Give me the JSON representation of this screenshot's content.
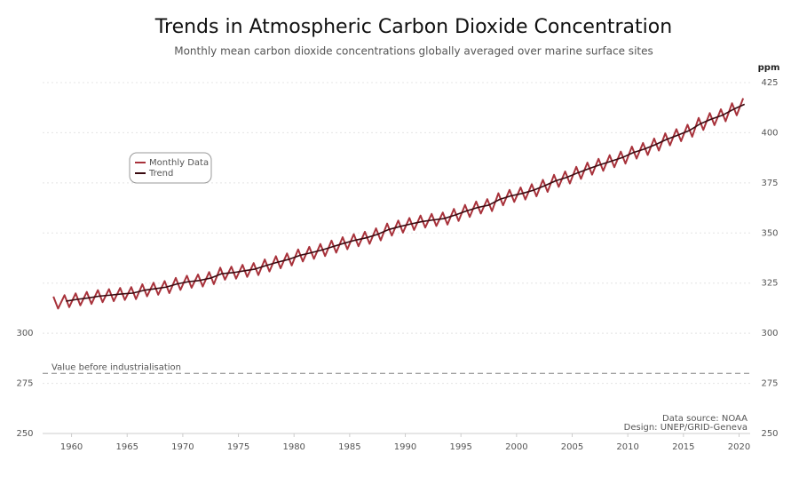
{
  "chart_data": {
    "type": "line",
    "title": "Trends in Atmospheric Carbon Dioxide Concentration",
    "subtitle": "Monthly mean carbon dioxide concentrations globally averaged over marine surface sites",
    "y2_label": "ppm",
    "xlim": [
      1957.4,
      2021
    ],
    "xticks": [
      1960,
      1965,
      1970,
      1975,
      1980,
      1985,
      1990,
      1995,
      2000,
      2005,
      2010,
      2015,
      2020
    ],
    "ylim": [
      250,
      425
    ],
    "yticks": [
      250,
      275,
      300
    ],
    "y2lim": [
      250,
      425
    ],
    "y2ticks": [
      250,
      275,
      300,
      325,
      350,
      375,
      400,
      425
    ],
    "grid": true,
    "legend": "upper-left",
    "reference_lines": [
      {
        "value": 280,
        "label": "Value before industrialisation"
      }
    ],
    "notes": [
      "Data source: NOAA",
      "Design: UNEP/GRID-Geneva"
    ],
    "series": [
      {
        "name": "Monthly Data",
        "color": "#a8323b",
        "x": [
          1958.37,
          1958.79,
          1959.37,
          1959.79,
          1960.37,
          1960.79,
          1961.37,
          1961.79,
          1962.37,
          1962.79,
          1963.37,
          1963.79,
          1964.37,
          1964.79,
          1965.37,
          1965.79,
          1966.37,
          1966.79,
          1967.37,
          1967.79,
          1968.37,
          1968.79,
          1969.37,
          1969.79,
          1970.37,
          1970.79,
          1971.37,
          1971.79,
          1972.37,
          1972.79,
          1973.37,
          1973.79,
          1974.37,
          1974.79,
          1975.37,
          1975.79,
          1976.37,
          1976.79,
          1977.37,
          1977.79,
          1978.37,
          1978.79,
          1979.37,
          1979.79,
          1980.37,
          1980.79,
          1981.37,
          1981.79,
          1982.37,
          1982.79,
          1983.37,
          1983.79,
          1984.37,
          1984.79,
          1985.37,
          1985.79,
          1986.37,
          1986.79,
          1987.37,
          1987.79,
          1988.37,
          1988.79,
          1989.37,
          1989.79,
          1990.37,
          1990.79,
          1991.37,
          1991.79,
          1992.37,
          1992.79,
          1993.37,
          1993.79,
          1994.37,
          1994.79,
          1995.37,
          1995.79,
          1996.37,
          1996.79,
          1997.37,
          1997.79,
          1998.37,
          1998.79,
          1999.37,
          1999.79,
          2000.37,
          2000.79,
          2001.37,
          2001.79,
          2002.37,
          2002.79,
          2003.37,
          2003.79,
          2004.37,
          2004.79,
          2005.37,
          2005.79,
          2006.37,
          2006.79,
          2007.37,
          2007.79,
          2008.37,
          2008.79,
          2009.37,
          2009.79,
          2010.37,
          2010.79,
          2011.37,
          2011.79,
          2012.37,
          2012.79,
          2013.37,
          2013.79,
          2014.37,
          2014.79,
          2015.37,
          2015.79,
          2016.37,
          2016.79,
          2017.37,
          2017.79,
          2018.37,
          2018.79,
          2019.37,
          2019.79,
          2020.37
        ],
        "values": [
          318.3,
          312.3,
          319.0,
          313.0,
          319.9,
          313.9,
          320.6,
          314.6,
          321.5,
          315.5,
          322.0,
          316.0,
          322.6,
          316.6,
          323.0,
          317.0,
          324.4,
          318.4,
          325.2,
          319.2,
          326.0,
          320.0,
          327.6,
          321.6,
          328.7,
          322.7,
          329.3,
          323.3,
          330.5,
          324.5,
          332.7,
          326.7,
          333.2,
          327.2,
          334.1,
          328.1,
          335.0,
          329.0,
          336.8,
          330.8,
          338.4,
          332.4,
          339.8,
          333.8,
          341.8,
          335.8,
          343.1,
          337.1,
          344.5,
          338.5,
          346.2,
          340.2,
          347.9,
          341.9,
          349.4,
          343.4,
          350.6,
          344.6,
          352.3,
          346.3,
          354.7,
          348.7,
          356.2,
          350.2,
          357.5,
          351.5,
          358.7,
          352.7,
          359.5,
          353.5,
          360.2,
          354.2,
          362.0,
          356.0,
          364.0,
          358.0,
          365.7,
          359.7,
          366.9,
          360.9,
          369.8,
          363.8,
          371.5,
          365.5,
          372.7,
          366.7,
          374.3,
          368.3,
          376.5,
          370.5,
          379.0,
          373.0,
          380.7,
          374.7,
          383.0,
          377.0,
          385.1,
          379.1,
          387.0,
          381.0,
          388.8,
          382.8,
          390.6,
          384.6,
          393.1,
          387.1,
          394.9,
          388.9,
          397.1,
          391.1,
          399.7,
          393.7,
          401.8,
          395.8,
          404.0,
          398.0,
          407.4,
          401.4,
          409.8,
          403.8,
          411.7,
          405.7,
          414.7,
          408.7,
          417.2
        ]
      },
      {
        "name": "Trend",
        "color": "#3a0a10",
        "x": [
          1959.5,
          1960.5,
          1961.5,
          1962.5,
          1963.5,
          1964.5,
          1965.5,
          1966.5,
          1967.5,
          1968.5,
          1969.5,
          1970.5,
          1971.5,
          1972.5,
          1973.5,
          1974.5,
          1975.5,
          1976.5,
          1977.5,
          1978.5,
          1979.5,
          1980.5,
          1981.5,
          1982.5,
          1983.5,
          1984.5,
          1985.5,
          1986.5,
          1987.5,
          1988.5,
          1989.5,
          1990.5,
          1991.5,
          1992.5,
          1993.5,
          1994.5,
          1995.5,
          1996.5,
          1997.5,
          1998.5,
          1999.5,
          2000.5,
          2001.5,
          2002.5,
          2003.5,
          2004.5,
          2005.5,
          2006.5,
          2007.5,
          2008.5,
          2009.5,
          2010.5,
          2011.5,
          2012.5,
          2013.5,
          2014.5,
          2015.5,
          2016.5,
          2017.5,
          2018.5,
          2019.5,
          2020.5
        ],
        "values": [
          316.0,
          316.9,
          317.6,
          318.5,
          319.0,
          319.6,
          320.0,
          321.4,
          322.2,
          323.0,
          324.6,
          325.7,
          326.3,
          327.5,
          329.7,
          330.2,
          331.1,
          332.0,
          333.8,
          335.4,
          336.8,
          338.8,
          340.1,
          341.5,
          343.2,
          344.9,
          346.4,
          347.6,
          349.3,
          351.7,
          353.2,
          354.5,
          355.7,
          356.5,
          357.2,
          359.0,
          361.0,
          362.7,
          363.9,
          366.8,
          368.5,
          369.7,
          371.3,
          373.5,
          376.0,
          377.7,
          380.0,
          382.1,
          384.0,
          385.8,
          387.6,
          390.1,
          391.9,
          394.1,
          396.7,
          398.8,
          401.0,
          404.4,
          406.8,
          408.7,
          411.7,
          414.2
        ]
      }
    ]
  }
}
